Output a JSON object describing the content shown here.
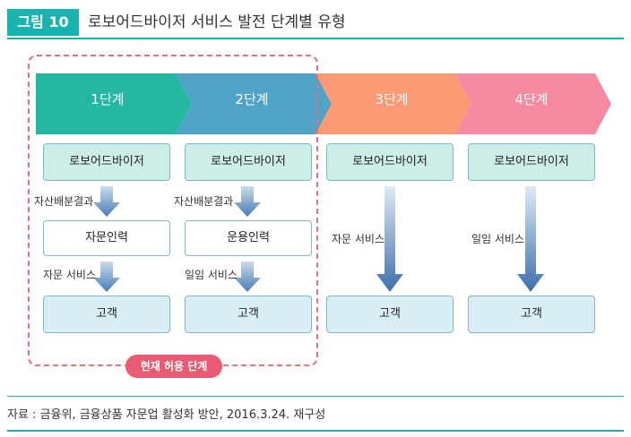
{
  "header": {
    "badge": "그림 10",
    "title": "로보어드바이저 서비스 발전 단계별 유형"
  },
  "colors": {
    "stage1": "#26b7a3",
    "stage2": "#4ea3c6",
    "stage3": "#f99a74",
    "stage4": "#f58aa0",
    "accent": "#1bb3b0",
    "pill": "#ea5a73"
  },
  "stages": [
    {
      "label": "1단계",
      "top": "로보어드바이저",
      "label1": "자산배분결과",
      "mid": "자문인력",
      "label2": "자문 서비스",
      "bottom": "고객"
    },
    {
      "label": "2단계",
      "top": "로보어드바이저",
      "label1": "자산배분결과",
      "mid": "운용인력",
      "label2": "일임 서비스",
      "bottom": "고객"
    },
    {
      "label": "3단계",
      "top": "로보어드바이저",
      "label1": "자문 서비스",
      "bottom": "고객"
    },
    {
      "label": "4단계",
      "top": "로보어드바이저",
      "label1": "일임 서비스",
      "bottom": "고객"
    }
  ],
  "current_stage_pill": "현재 허용 단계",
  "source": "자료 : 금융위, 금융상품 자문업 활성화 방안, 2016.3.24. 재구성"
}
